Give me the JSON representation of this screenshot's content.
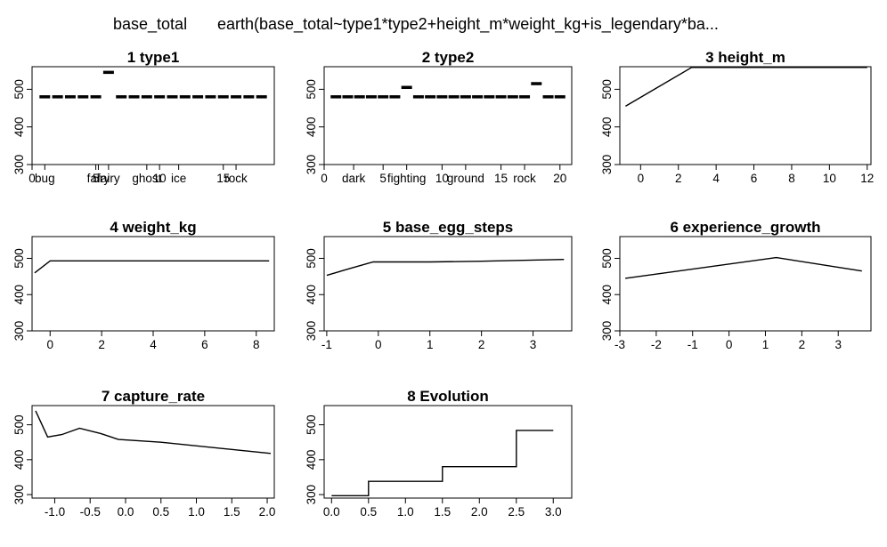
{
  "header": {
    "response": "base_total",
    "model": "earth(base_total~type1*type2+height_m*weight_kg+is_legendary*ba..."
  },
  "chart_data": [
    {
      "type": "step",
      "title": "1  type1",
      "xlim": [
        0,
        19
      ],
      "ylim": [
        300,
        560
      ],
      "yticks": [
        300,
        400,
        500
      ],
      "xticks": [
        {
          "x": 0,
          "label": "0"
        },
        {
          "x": 1,
          "label": "bug"
        },
        {
          "x": 5,
          "label": "5"
        },
        {
          "x": 5.2,
          "label": "fairy"
        },
        {
          "x": 6,
          "label": "fairy"
        },
        {
          "x": 9,
          "label": "ghost"
        },
        {
          "x": 10,
          "label": "10"
        },
        {
          "x": 11.5,
          "label": "ice"
        },
        {
          "x": 15,
          "label": "15"
        },
        {
          "x": 16,
          "label": "rock"
        }
      ],
      "bars": [
        {
          "x": 1,
          "y": 480
        },
        {
          "x": 2,
          "y": 480
        },
        {
          "x": 3,
          "y": 480
        },
        {
          "x": 4,
          "y": 480
        },
        {
          "x": 5,
          "y": 480
        },
        {
          "x": 6,
          "y": 545
        },
        {
          "x": 7,
          "y": 480
        },
        {
          "x": 8,
          "y": 480
        },
        {
          "x": 9,
          "y": 480
        },
        {
          "x": 10,
          "y": 480
        },
        {
          "x": 11,
          "y": 480
        },
        {
          "x": 12,
          "y": 480
        },
        {
          "x": 13,
          "y": 480
        },
        {
          "x": 14,
          "y": 480
        },
        {
          "x": 15,
          "y": 480
        },
        {
          "x": 16,
          "y": 480
        },
        {
          "x": 17,
          "y": 480
        },
        {
          "x": 18,
          "y": 480
        }
      ]
    },
    {
      "type": "step",
      "title": "2  type2",
      "xlim": [
        0,
        21
      ],
      "ylim": [
        300,
        560
      ],
      "yticks": [
        300,
        400,
        500
      ],
      "xticks": [
        {
          "x": 0,
          "label": "0"
        },
        {
          "x": 2.5,
          "label": "dark"
        },
        {
          "x": 5,
          "label": "5"
        },
        {
          "x": 7,
          "label": "fighting"
        },
        {
          "x": 10,
          "label": "10"
        },
        {
          "x": 12,
          "label": "ground"
        },
        {
          "x": 15,
          "label": "15"
        },
        {
          "x": 17,
          "label": "rock"
        },
        {
          "x": 20,
          "label": "20"
        }
      ],
      "bars": [
        {
          "x": 1,
          "y": 480
        },
        {
          "x": 2,
          "y": 480
        },
        {
          "x": 3,
          "y": 480
        },
        {
          "x": 4,
          "y": 480
        },
        {
          "x": 5,
          "y": 480
        },
        {
          "x": 6,
          "y": 480
        },
        {
          "x": 7,
          "y": 505
        },
        {
          "x": 8,
          "y": 480
        },
        {
          "x": 9,
          "y": 480
        },
        {
          "x": 10,
          "y": 480
        },
        {
          "x": 11,
          "y": 480
        },
        {
          "x": 12,
          "y": 480
        },
        {
          "x": 13,
          "y": 480
        },
        {
          "x": 14,
          "y": 480
        },
        {
          "x": 15,
          "y": 480
        },
        {
          "x": 16,
          "y": 480
        },
        {
          "x": 17,
          "y": 480
        },
        {
          "x": 18,
          "y": 515
        },
        {
          "x": 19,
          "y": 480
        },
        {
          "x": 20,
          "y": 480
        }
      ]
    },
    {
      "type": "line",
      "title": "3  height_m",
      "xlim": [
        -1.1,
        12.2
      ],
      "ylim": [
        300,
        560
      ],
      "yticks": [
        300,
        400,
        500
      ],
      "xticks": [
        {
          "x": 0,
          "label": "0"
        },
        {
          "x": 2,
          "label": "2"
        },
        {
          "x": 4,
          "label": "4"
        },
        {
          "x": 6,
          "label": "6"
        },
        {
          "x": 8,
          "label": "8"
        },
        {
          "x": 10,
          "label": "10"
        },
        {
          "x": 12,
          "label": "12"
        }
      ],
      "points": [
        [
          -0.8,
          455
        ],
        [
          2.7,
          558
        ],
        [
          12,
          558
        ]
      ]
    },
    {
      "type": "line",
      "title": "4  weight_kg",
      "xlim": [
        -0.7,
        8.7
      ],
      "ylim": [
        300,
        560
      ],
      "yticks": [
        300,
        400,
        500
      ],
      "xticks": [
        {
          "x": 0,
          "label": "0"
        },
        {
          "x": 2,
          "label": "2"
        },
        {
          "x": 4,
          "label": "4"
        },
        {
          "x": 6,
          "label": "6"
        },
        {
          "x": 8,
          "label": "8"
        }
      ],
      "points": [
        [
          -0.6,
          460
        ],
        [
          0,
          493
        ],
        [
          8.5,
          493
        ]
      ]
    },
    {
      "type": "line",
      "title": "5  base_egg_steps",
      "xlim": [
        -1.05,
        3.75
      ],
      "ylim": [
        300,
        560
      ],
      "yticks": [
        300,
        400,
        500
      ],
      "xticks": [
        {
          "x": -1,
          "label": "-1"
        },
        {
          "x": 0,
          "label": "0"
        },
        {
          "x": 1,
          "label": "1"
        },
        {
          "x": 2,
          "label": "2"
        },
        {
          "x": 3,
          "label": "3"
        }
      ],
      "points": [
        [
          -1,
          453
        ],
        [
          -0.6,
          470
        ],
        [
          -0.1,
          490
        ],
        [
          1.0,
          490
        ],
        [
          2.0,
          492
        ],
        [
          3.6,
          497
        ]
      ]
    },
    {
      "type": "line",
      "title": "6  experience_growth",
      "xlim": [
        -3.0,
        3.9
      ],
      "ylim": [
        300,
        560
      ],
      "yticks": [
        300,
        400,
        500
      ],
      "xticks": [
        {
          "x": -3,
          "label": "-3"
        },
        {
          "x": -2,
          "label": "-2"
        },
        {
          "x": -1,
          "label": "-1"
        },
        {
          "x": 0,
          "label": "0"
        },
        {
          "x": 1,
          "label": "1"
        },
        {
          "x": 2,
          "label": "2"
        },
        {
          "x": 3,
          "label": "3"
        }
      ],
      "points": [
        [
          -2.85,
          445
        ],
        [
          1.3,
          502
        ],
        [
          3.65,
          465
        ]
      ]
    },
    {
      "type": "line",
      "title": "7  capture_rate",
      "xlim": [
        -1.32,
        2.1
      ],
      "ylim": [
        290,
        555
      ],
      "yticks": [
        300,
        400,
        500
      ],
      "xticks": [
        {
          "x": -1.0,
          "label": "-1.0"
        },
        {
          "x": -0.5,
          "label": "-0.5"
        },
        {
          "x": 0.0,
          "label": "0.0"
        },
        {
          "x": 0.5,
          "label": "0.5"
        },
        {
          "x": 1.0,
          "label": "1.0"
        },
        {
          "x": 1.5,
          "label": "1.5"
        },
        {
          "x": 2.0,
          "label": "2.0"
        }
      ],
      "points": [
        [
          -1.27,
          540
        ],
        [
          -1.1,
          465
        ],
        [
          -0.9,
          472
        ],
        [
          -0.65,
          490
        ],
        [
          -0.35,
          475
        ],
        [
          -0.1,
          458
        ],
        [
          0.5,
          450
        ],
        [
          2.05,
          418
        ]
      ]
    },
    {
      "type": "step",
      "title": "8  Evolution",
      "xlim": [
        -0.1,
        3.25
      ],
      "ylim": [
        290,
        555
      ],
      "yticks": [
        300,
        400,
        500
      ],
      "xticks": [
        {
          "x": 0.0,
          "label": "0.0"
        },
        {
          "x": 0.5,
          "label": "0.5"
        },
        {
          "x": 1.0,
          "label": "1.0"
        },
        {
          "x": 1.5,
          "label": "1.5"
        },
        {
          "x": 2.0,
          "label": "2.0"
        },
        {
          "x": 2.5,
          "label": "2.5"
        },
        {
          "x": 3.0,
          "label": "3.0"
        }
      ],
      "points": [
        [
          0.0,
          297
        ],
        [
          0.5,
          297
        ],
        [
          0.5,
          338
        ],
        [
          1.5,
          338
        ],
        [
          1.5,
          380
        ],
        [
          2.5,
          380
        ],
        [
          2.5,
          484
        ],
        [
          3.0,
          484
        ]
      ]
    }
  ]
}
